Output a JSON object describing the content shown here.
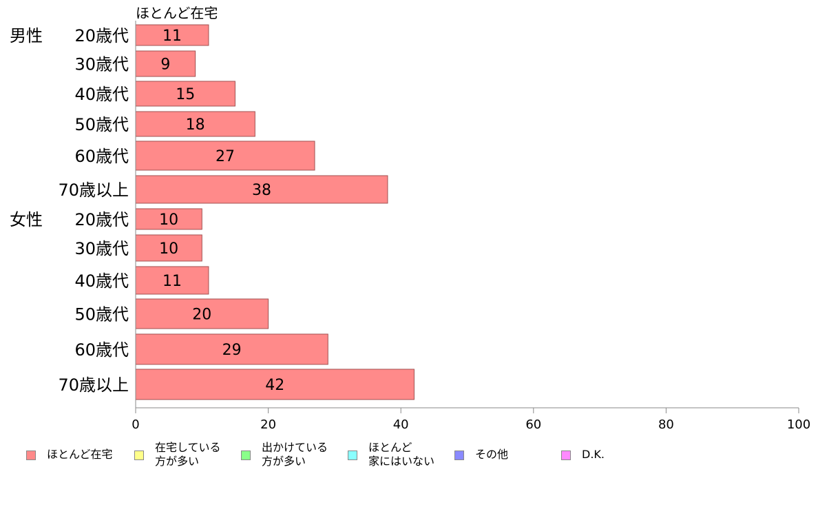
{
  "chart_data": {
    "type": "bar",
    "orientation": "horizontal",
    "shown_series": "ほとんど在宅",
    "groups": [
      {
        "label": "男性",
        "categories": [
          "20歳代",
          "30歳代",
          "40歳代",
          "50歳代",
          "60歳代",
          "70歳以上"
        ],
        "values": [
          11,
          9,
          15,
          18,
          27,
          38
        ]
      },
      {
        "label": "女性",
        "categories": [
          "20歳代",
          "30歳代",
          "40歳代",
          "50歳代",
          "60歳代",
          "70歳以上"
        ],
        "values": [
          10,
          10,
          11,
          20,
          29,
          42
        ]
      }
    ],
    "xlim": [
      0,
      100
    ],
    "xticks": [
      "0",
      "20",
      "40",
      "60",
      "80",
      "100"
    ],
    "grid": false,
    "legend_position": "bottom",
    "legend": [
      {
        "lines": [
          "ほとんど在宅"
        ],
        "color": "#ff8a8a"
      },
      {
        "lines": [
          "在宅している",
          "方が多い"
        ],
        "color": "#ffff8a"
      },
      {
        "lines": [
          "出かけている",
          "方が多い"
        ],
        "color": "#8aff8a"
      },
      {
        "lines": [
          "ほとんど",
          "家にはいない"
        ],
        "color": "#8affff"
      },
      {
        "lines": [
          "その他"
        ],
        "color": "#8a8aff"
      },
      {
        "lines": [
          "D.K."
        ],
        "color": "#ff8aff"
      }
    ],
    "bar_color": "#ff8a8a",
    "bar_border": "#a05050"
  }
}
